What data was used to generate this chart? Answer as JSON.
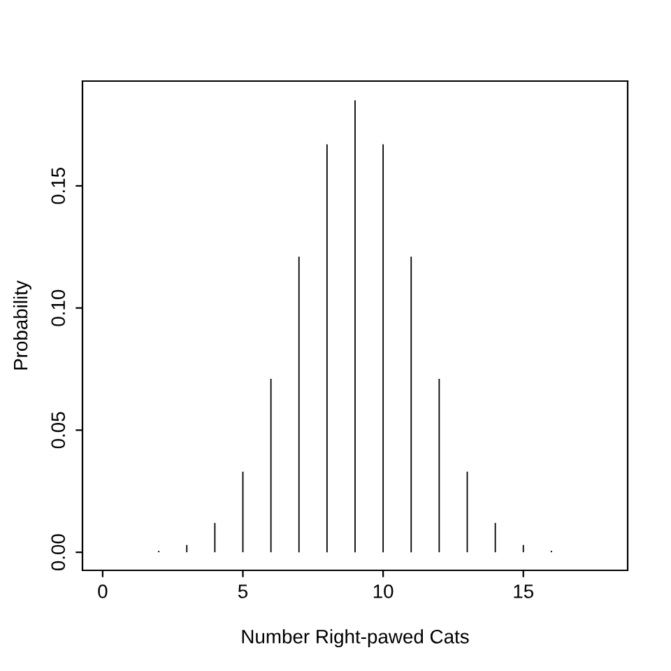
{
  "chart_data": {
    "type": "bar",
    "xlabel": "Number Right-pawed Cats",
    "ylabel": "Probability",
    "x": [
      0,
      1,
      2,
      3,
      4,
      5,
      6,
      7,
      8,
      9,
      10,
      11,
      12,
      13,
      14,
      15,
      16,
      17,
      18
    ],
    "values": [
      0.0,
      0.0,
      0.0006,
      0.003,
      0.012,
      0.033,
      0.071,
      0.121,
      0.167,
      0.185,
      0.167,
      0.121,
      0.071,
      0.033,
      0.012,
      0.003,
      0.0006,
      0.0,
      0.0
    ],
    "color": "#000000",
    "xlim": [
      -0.72,
      18.72
    ],
    "ylim": [
      -0.0074,
      0.1929
    ],
    "xticks": [
      0,
      5,
      10,
      15
    ],
    "yticks": [
      {
        "value": 0,
        "label": "0.00"
      },
      {
        "value": 0.05,
        "label": "0.05"
      },
      {
        "value": 0.1,
        "label": "0.10"
      },
      {
        "value": 0.15,
        "label": "0.15"
      }
    ],
    "grid": false,
    "legend": false
  }
}
